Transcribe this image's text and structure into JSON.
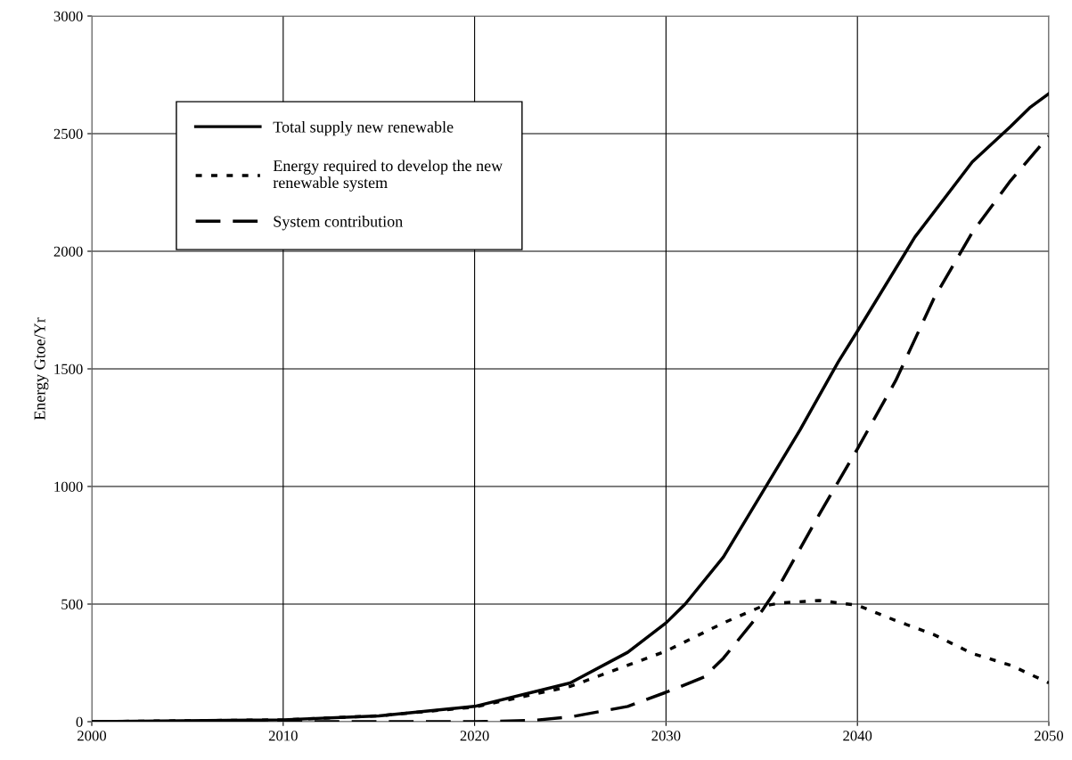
{
  "chart_data": {
    "type": "line",
    "ylabel": "Energy Gtoe/Yr",
    "xlim": [
      2000,
      2050
    ],
    "xticks": [
      2000,
      2010,
      2020,
      2030,
      2040,
      2050
    ],
    "ylim": [
      0,
      3000
    ],
    "yticks": [
      0,
      500,
      1000,
      1500,
      2000,
      2500,
      3000
    ],
    "grid": true,
    "legend": "top left",
    "marker": "none",
    "series": [
      {
        "name": "Total supply new renewable",
        "color": "#000000",
        "line_style": "solid",
        "x": [
          2000,
          2010,
          2015,
          2020,
          2025,
          2028,
          2030,
          2031,
          2033,
          2035,
          2037,
          2039,
          2040,
          2043,
          2046,
          2048,
          2049,
          2050
        ],
        "values": [
          0,
          8,
          25,
          65,
          165,
          295,
          420,
          500,
          700,
          970,
          1240,
          1530,
          1660,
          2060,
          2380,
          2530,
          2610,
          2670
        ]
      },
      {
        "name": "Energy required to develop the new\nrenewable system",
        "color": "#000000",
        "line_style": "dotted",
        "x": [
          2000,
          2010,
          2015,
          2020,
          2025,
          2028,
          2030,
          2033,
          2035,
          2036,
          2038,
          2040,
          2042,
          2044,
          2046,
          2048,
          2050
        ],
        "values": [
          0,
          8,
          25,
          62,
          150,
          240,
          300,
          420,
          490,
          505,
          515,
          495,
          430,
          370,
          290,
          240,
          165
        ]
      },
      {
        "name": "System contribution",
        "color": "#000000",
        "line_style": "dashed",
        "x": [
          2000,
          2020,
          2023,
          2025,
          2028,
          2030,
          2032,
          2033,
          2035,
          2036,
          2038,
          2040,
          2042,
          2044,
          2046,
          2048,
          2050
        ],
        "values": [
          0,
          0,
          5,
          20,
          65,
          125,
          190,
          270,
          470,
          590,
          880,
          1160,
          1450,
          1800,
          2080,
          2300,
          2490
        ]
      }
    ]
  }
}
